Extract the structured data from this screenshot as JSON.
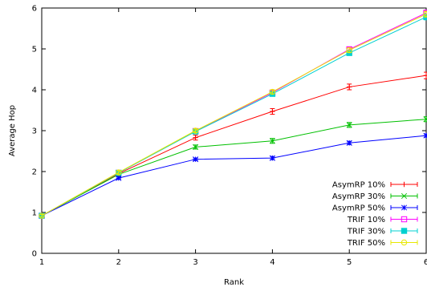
{
  "chart_data": {
    "type": "line",
    "title": "",
    "xlabel": "Rank",
    "ylabel": "Average Hop",
    "xlim": [
      1,
      6
    ],
    "ylim": [
      0,
      6
    ],
    "x": [
      1,
      2,
      3,
      4,
      5,
      6
    ],
    "xticks": [
      "1",
      "2",
      "3",
      "4",
      "5",
      "6"
    ],
    "yticks": [
      "0",
      "1",
      "2",
      "3",
      "4",
      "5",
      "6"
    ],
    "grid": false,
    "legend_position": "bottom-right",
    "series": [
      {
        "name": "AsymRP 10%",
        "color": "#ff0000",
        "marker": "plus",
        "values": [
          0.92,
          1.95,
          2.83,
          3.47,
          4.07,
          4.35
        ],
        "errors": [
          0.03,
          0.05,
          0.06,
          0.07,
          0.07,
          0.08
        ]
      },
      {
        "name": "AsymRP 30%",
        "color": "#00c000",
        "marker": "x",
        "values": [
          0.92,
          1.93,
          2.6,
          2.75,
          3.14,
          3.28
        ],
        "errors": [
          0.03,
          0.04,
          0.05,
          0.06,
          0.06,
          0.06
        ]
      },
      {
        "name": "AsymRP 50%",
        "color": "#0000ff",
        "marker": "star",
        "values": [
          0.92,
          1.84,
          2.3,
          2.33,
          2.7,
          2.88
        ],
        "errors": [
          0.02,
          0.03,
          0.03,
          0.04,
          0.04,
          0.04
        ]
      },
      {
        "name": "TRIF 10%",
        "color": "#ff00ff",
        "marker": "square",
        "values": [
          0.92,
          1.97,
          2.99,
          3.93,
          4.99,
          5.88
        ],
        "errors": [
          0.03,
          0.04,
          0.04,
          0.05,
          0.06,
          0.07
        ]
      },
      {
        "name": "TRIF 30%",
        "color": "#00d0d0",
        "marker": "filled-square",
        "values": [
          0.92,
          1.97,
          2.98,
          3.9,
          4.9,
          5.78
        ],
        "errors": [
          0.03,
          0.04,
          0.04,
          0.05,
          0.06,
          0.07
        ]
      },
      {
        "name": "TRIF 50%",
        "color": "#e8e800",
        "marker": "circle",
        "values": [
          0.92,
          1.98,
          3.0,
          3.95,
          4.97,
          5.85
        ],
        "errors": [
          0.03,
          0.04,
          0.04,
          0.05,
          0.06,
          0.07
        ]
      }
    ]
  }
}
